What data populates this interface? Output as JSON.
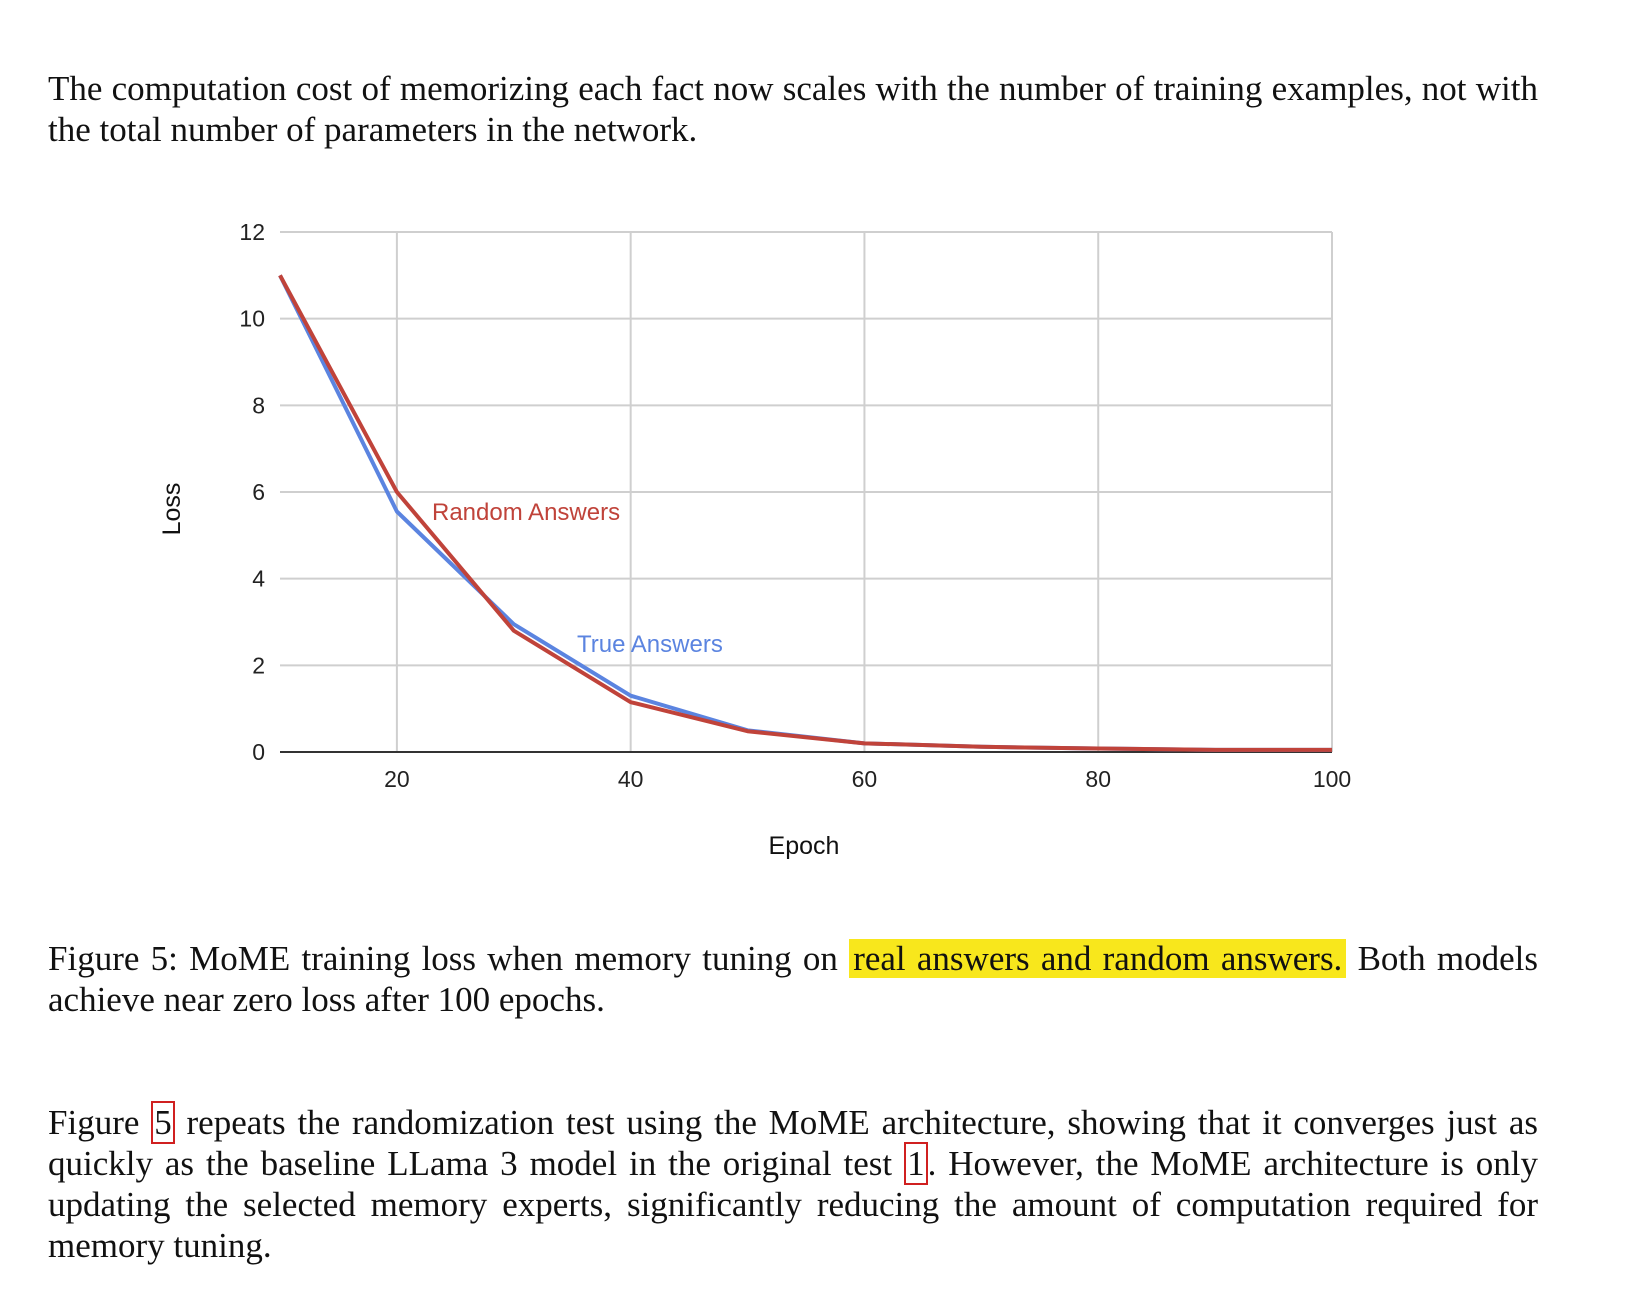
{
  "intro": {
    "text": "The computation cost of memorizing each fact now scales with the number of training examples, not with the total number of parameters in the network."
  },
  "caption": {
    "before": "Figure 5: MoME training loss when memory tuning on",
    "highlight": "real answers and random answers.",
    "after": "Both models achieve near zero loss after 100 epochs."
  },
  "body": {
    "part1": "Figure ",
    "ref1": "5",
    "part2": " repeats the randomization test using the MoME architecture, showing that it converges just as quickly as the baseline LLama 3 model in the original test ",
    "ref2": "1",
    "part3": ". However, the MoME architecture is only updating the selected memory experts, significantly reducing the amount of computation required for memory tuning."
  },
  "colors": {
    "highlight": "#f8e71c",
    "ref_box": "#d02020"
  },
  "chart_data": {
    "type": "line",
    "xlabel": "Epoch",
    "ylabel": "Loss",
    "xlim": [
      10,
      100
    ],
    "ylim": [
      0,
      12
    ],
    "xticks": [
      20,
      40,
      60,
      80,
      100
    ],
    "yticks": [
      0,
      2,
      4,
      6,
      8,
      10,
      12
    ],
    "grid": true,
    "series": [
      {
        "name": "True Answers",
        "color": "#5b84e0",
        "x": [
          10,
          20,
          30,
          40,
          50,
          60,
          70,
          80,
          90,
          100
        ],
        "values": [
          11,
          5.55,
          2.95,
          1.3,
          0.5,
          0.2,
          0.12,
          0.08,
          0.05,
          0.05
        ]
      },
      {
        "name": "Random Answers",
        "color": "#c0433a",
        "x": [
          10,
          20,
          30,
          40,
          50,
          60,
          70,
          80,
          90,
          100
        ],
        "values": [
          11,
          6,
          2.8,
          1.15,
          0.48,
          0.2,
          0.12,
          0.08,
          0.05,
          0.05
        ]
      }
    ]
  }
}
